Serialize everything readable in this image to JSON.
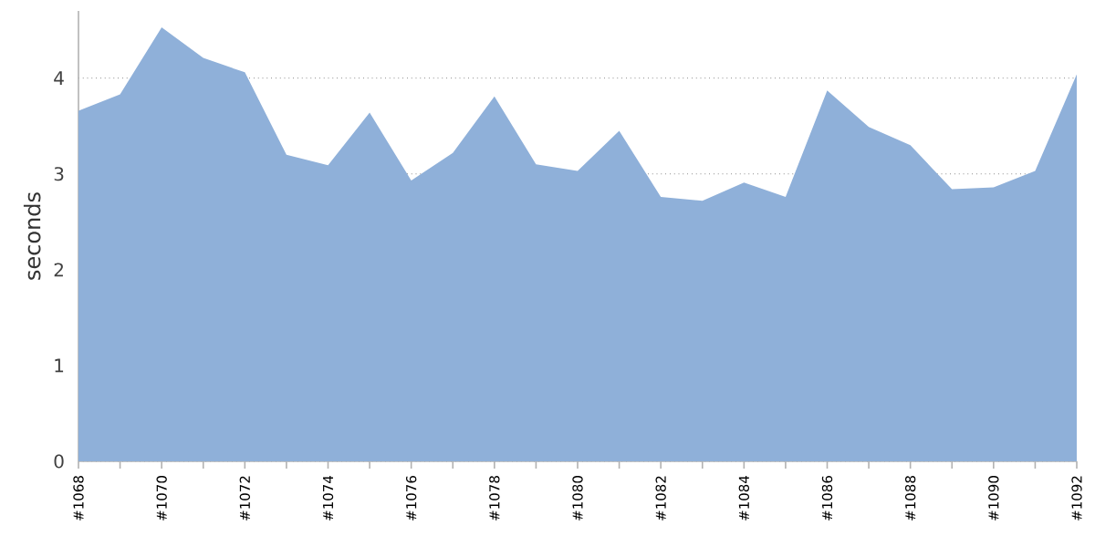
{
  "chart_data": {
    "type": "area",
    "ylabel": "seconds",
    "categories": [
      "#1068",
      null,
      "#1070",
      null,
      "#1072",
      null,
      "#1074",
      null,
      "#1076",
      null,
      "#1078",
      null,
      "#1080",
      null,
      "#1082",
      null,
      "#1084",
      null,
      "#1086",
      null,
      "#1088",
      null,
      "#1090",
      null,
      "#1092"
    ],
    "values": [
      3.66,
      3.83,
      4.53,
      4.21,
      4.06,
      3.2,
      3.09,
      3.64,
      2.93,
      3.22,
      3.81,
      3.1,
      3.03,
      3.45,
      2.76,
      2.72,
      2.91,
      2.76,
      3.87,
      3.49,
      3.3,
      2.84,
      2.86,
      3.03,
      4.04
    ],
    "color": "#8fb0d9",
    "ylim": [
      0,
      4.7
    ],
    "yticks": [
      0,
      1,
      2,
      3,
      4
    ],
    "grid": "y"
  }
}
